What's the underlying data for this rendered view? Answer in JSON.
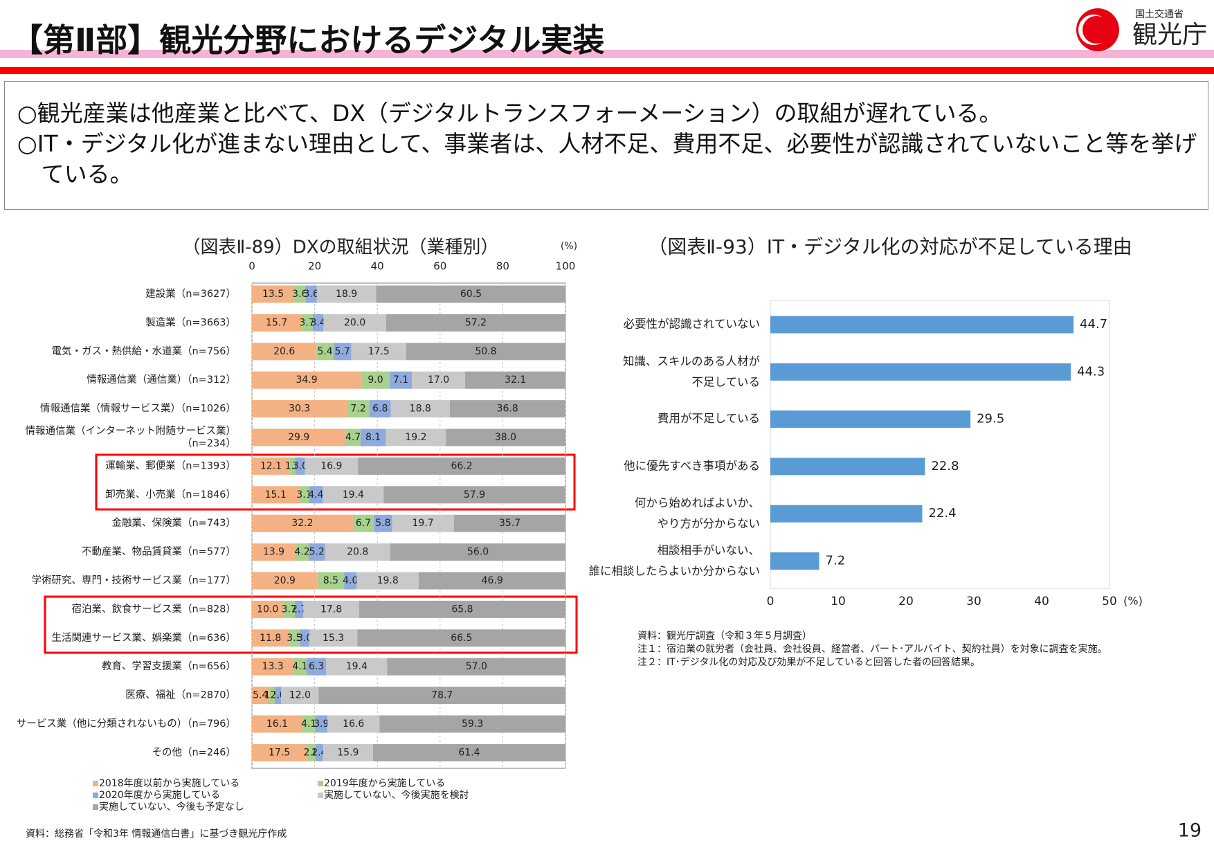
{
  "header": {
    "title": "【第Ⅱ部】観光分野におけるデジタル実装",
    "org": "国土交通省",
    "agency": "観光庁",
    "page_number": "19"
  },
  "summary": [
    "○観光産業は他産業と比べて、DX（デジタルトランスフォーメーション）の取組が遅れている。",
    "○IT・デジタル化が進まない理由として、事業者は、人材不足、費用不足、必要性が認識されていないこと等を挙げている。"
  ],
  "chart_data": [
    {
      "type": "bar",
      "orientation": "horizontal",
      "stacked": true,
      "title": "（図表Ⅱ-89）DXの取組状況（業種別）",
      "unit": "(%)",
      "categories": [
        "建設業（n=3627）",
        "製造業（n=3663）",
        "電気・ガス・熱供給・水道業（n=756）",
        "情報通信業（通信業）（n=312）",
        "情報通信業（情報サービス業）（n=1026）",
        "情報通信業（インターネット附随サービス業）\n（n=234）",
        "運輸業、郵便業（n=1393）",
        "卸売業、小売業（n=1846）",
        "金融業、保険業（n=743）",
        "不動産業、物品賃貸業（n=577）",
        "学術研究、専門・技術サービス業（n=177）",
        "宿泊業、飲食サービス業（n=828）",
        "生活関連サービス業、娯楽業（n=636）",
        "教育、学習支援業（n=656）",
        "医療、福祉（n=2870）",
        "サービス業（他に分類されないもの）（n=796）",
        "その他（n=246）"
      ],
      "series": [
        {
          "name": "2018年度以前から実施している",
          "color": "#f4b183",
          "values": [
            13.5,
            15.7,
            20.6,
            34.9,
            30.3,
            29.9,
            12.1,
            15.1,
            32.2,
            13.9,
            20.9,
            10.0,
            11.8,
            13.3,
            5.4,
            16.1,
            17.5
          ],
          "value_labels": [
            "13.5",
            "15.7",
            "20.6",
            "34.9",
            "30.3",
            "29.9",
            "12.1",
            "15.1",
            "32.2",
            "13.9",
            "20.9",
            "10.0",
            "11.8",
            "13.3",
            "5.4",
            "16.1",
            "17.5"
          ]
        },
        {
          "name": "2019年度から実施している",
          "color": "#a9d18e",
          "values": [
            3.6,
            3.7,
            5.4,
            9.0,
            7.2,
            4.7,
            1.8,
            3.1,
            6.7,
            4.2,
            8.5,
            3.7,
            3.5,
            4.1,
            1.9,
            4.1,
            2.8
          ],
          "value_labels": [
            "3.6",
            "3.7",
            "5.4",
            "9.0",
            "7.2",
            "4.7",
            "1.8",
            "3.1",
            "6.7",
            "4.2",
            "8.5",
            "3.7",
            "3.5",
            "4.1",
            "1.9",
            "4.1",
            "2.8"
          ]
        },
        {
          "name": "2020年度から実施している",
          "color": "#8faadc",
          "values": [
            3.6,
            3.4,
            5.7,
            7.1,
            6.8,
            8.1,
            3.0,
            4.4,
            5.8,
            5.2,
            4.0,
            2.7,
            3.0,
            6.3,
            2.0,
            3.9,
            2.4
          ],
          "value_labels": [
            "3.6",
            "3.4",
            "5.7",
            "7.1",
            "6.8",
            "8.1",
            "3.0",
            "4.4",
            "5.8",
            "5.2",
            "4.0",
            "2.7",
            "3.0",
            "6.3",
            "2.0",
            "3.9",
            "2.4"
          ]
        },
        {
          "name": "実施していない、今後実施を検討",
          "color": "#c9c9c9",
          "values": [
            18.9,
            20.0,
            17.5,
            17.0,
            18.8,
            19.2,
            16.9,
            19.4,
            19.7,
            20.8,
            19.8,
            17.8,
            15.3,
            19.4,
            12.0,
            16.6,
            15.9
          ],
          "value_labels": [
            "18.9",
            "20.0",
            "17.5",
            "17.0",
            "18.8",
            "19.2",
            "16.9",
            "19.4",
            "19.7",
            "20.8",
            "19.8",
            "17.8",
            "15.3",
            "19.4",
            "12.0",
            "16.6",
            "15.9"
          ]
        },
        {
          "name": "実施していない、今後も予定なし",
          "color": "#a5a5a5",
          "values": [
            60.5,
            57.2,
            50.8,
            32.1,
            36.8,
            38.0,
            66.2,
            57.9,
            35.7,
            56.0,
            46.9,
            65.8,
            66.5,
            57.0,
            78.7,
            59.3,
            61.4
          ],
          "value_labels": [
            "60.5",
            "57.2",
            "50.8",
            "32.1",
            "36.8",
            "38.0",
            "66.2",
            "57.9",
            "35.7",
            "56.0",
            "46.9",
            "65.8",
            "66.5",
            "57.0",
            "78.7",
            "59.3",
            "61.4"
          ]
        }
      ],
      "xlim": [
        0,
        100
      ],
      "xticks": [
        0,
        20,
        40,
        60,
        80,
        100
      ],
      "grid": true,
      "source": "資料：総務省「令和3年 情報通信白書」に基づき観光庁作成"
    },
    {
      "type": "bar",
      "orientation": "horizontal",
      "stacked": false,
      "title": "（図表Ⅱ-93）IT・デジタル化の対応が不足している理由",
      "unit": "(%)",
      "categories": [
        "必要性が認識されていない",
        "知識、スキルのある人材が\n不足している",
        "費用が不足している",
        "他に優先すべき事項がある",
        "何から始めればよいか、\nやり方が分からない",
        "相談相手がいない、\n誰に相談したらよいか分からない"
      ],
      "values": [
        44.7,
        44.3,
        29.5,
        22.8,
        22.4,
        7.2
      ],
      "color": "#5b9bd5",
      "xlim": [
        0,
        50
      ],
      "xticks": [
        0,
        10,
        20,
        30,
        40,
        50
      ],
      "grid": false,
      "notes": [
        "資料：観光庁調査（令和３年５月調査）",
        "注１：宿泊業の就労者（会社員、会社役員、経営者、パート･アルバイト、契約社員）を対象に調査を実施。",
        "注２：IT･デジタル化の対応及び効果が不足していると回答した者の回答結果。"
      ]
    }
  ]
}
